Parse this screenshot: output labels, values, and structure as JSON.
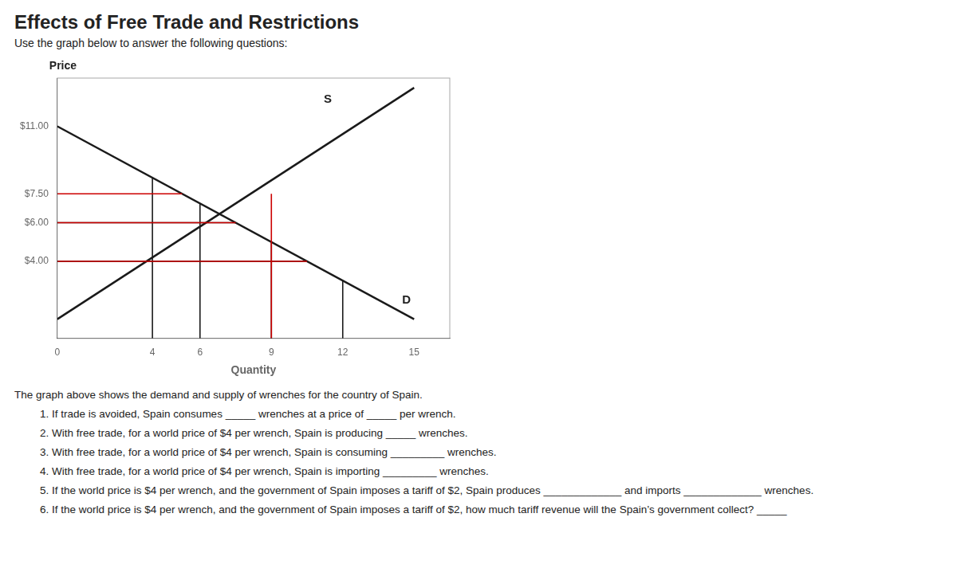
{
  "chart_data": {
    "type": "line",
    "title": "Effects of Free Trade and Restrictions",
    "subtitle": "Use the graph below to answer the following questions:",
    "xlabel": "Quantity",
    "ylabel": "Price",
    "xlim": [
      0,
      16.5
    ],
    "xticks": [
      0,
      4,
      6,
      9,
      12,
      15
    ],
    "ylim": [
      0,
      13.5
    ],
    "yticks": [
      {
        "value": 4.0,
        "label": "$4.00"
      },
      {
        "value": 6.0,
        "label": "$6.00"
      },
      {
        "value": 7.5,
        "label": "$7.50"
      },
      {
        "value": 11.0,
        "label": "$11.00"
      }
    ],
    "grid": false,
    "legend": false,
    "series": [
      {
        "color": "#1a1a1a",
        "x": [
          0,
          10.5
        ],
        "values": [
          4.0,
          4.0
        ]
      },
      {
        "color": "#1a1a1a",
        "x": [
          0,
          7.5
        ],
        "values": [
          6.0,
          6.0
        ]
      },
      {
        "color": "#1a1a1a",
        "x": [
          4,
          4
        ],
        "values": [
          0,
          8.333333333333334
        ]
      },
      {
        "color": "#1a1a1a",
        "x": [
          6,
          6
        ],
        "values": [
          0,
          7.0
        ]
      },
      {
        "color": "#1a1a1a",
        "x": [
          9,
          9
        ],
        "values": [
          0,
          5.0
        ]
      },
      {
        "color": "#1a1a1a",
        "x": [
          12,
          12
        ],
        "values": [
          0,
          3.0
        ]
      },
      {
        "name": "D",
        "color": "#1a1a1a",
        "x": [
          0,
          15
        ],
        "values": [
          11,
          1
        ]
      },
      {
        "name": "S",
        "color": "#1a1a1a",
        "x": [
          0,
          15
        ],
        "values": [
          1,
          13
        ]
      },
      {
        "color": "#cc0000",
        "x": [
          0,
          10.5
        ],
        "values": [
          4.0,
          4.0
        ]
      },
      {
        "color": "#cc0000",
        "x": [
          0,
          7.5
        ],
        "values": [
          6.0,
          6.0
        ]
      },
      {
        "color": "#cc0000",
        "x": [
          0,
          5.25
        ],
        "values": [
          7.5,
          7.5
        ]
      },
      {
        "color": "#cc0000",
        "x": [
          9,
          9
        ],
        "values": [
          0,
          7.5
        ]
      }
    ],
    "annotations": [
      {
        "text": "S",
        "x": 11.2,
        "y": 12.2
      },
      {
        "text": "D",
        "x": 14.5,
        "y": 1.8
      }
    ],
    "notes": [
      "The graph above shows the demand and supply of wrenches for the country of Spain.",
      "1.  If trade is avoided, Spain consumes _____ wrenches at a price of _____ per wrench.",
      "2.  With free trade, for a world price of $4 per wrench, Spain is producing _____ wrenches.",
      "3.  With free trade, for a world price of $4 per wrench, Spain is consuming _________ wrenches.",
      "4.  With free trade, for a world price of $4 per wrench, Spain is importing _________ wrenches.",
      "5.  If the world price is $4 per wrench, and the government of Spain imposes a tariff of $2, Spain produces _____________ and imports _____________ wrenches.",
      "6.  If the world price is $4 per wrench, and the government of Spain imposes a tariff of $2, how much tariff revenue will the Spain’s government collect? _____"
    ]
  }
}
